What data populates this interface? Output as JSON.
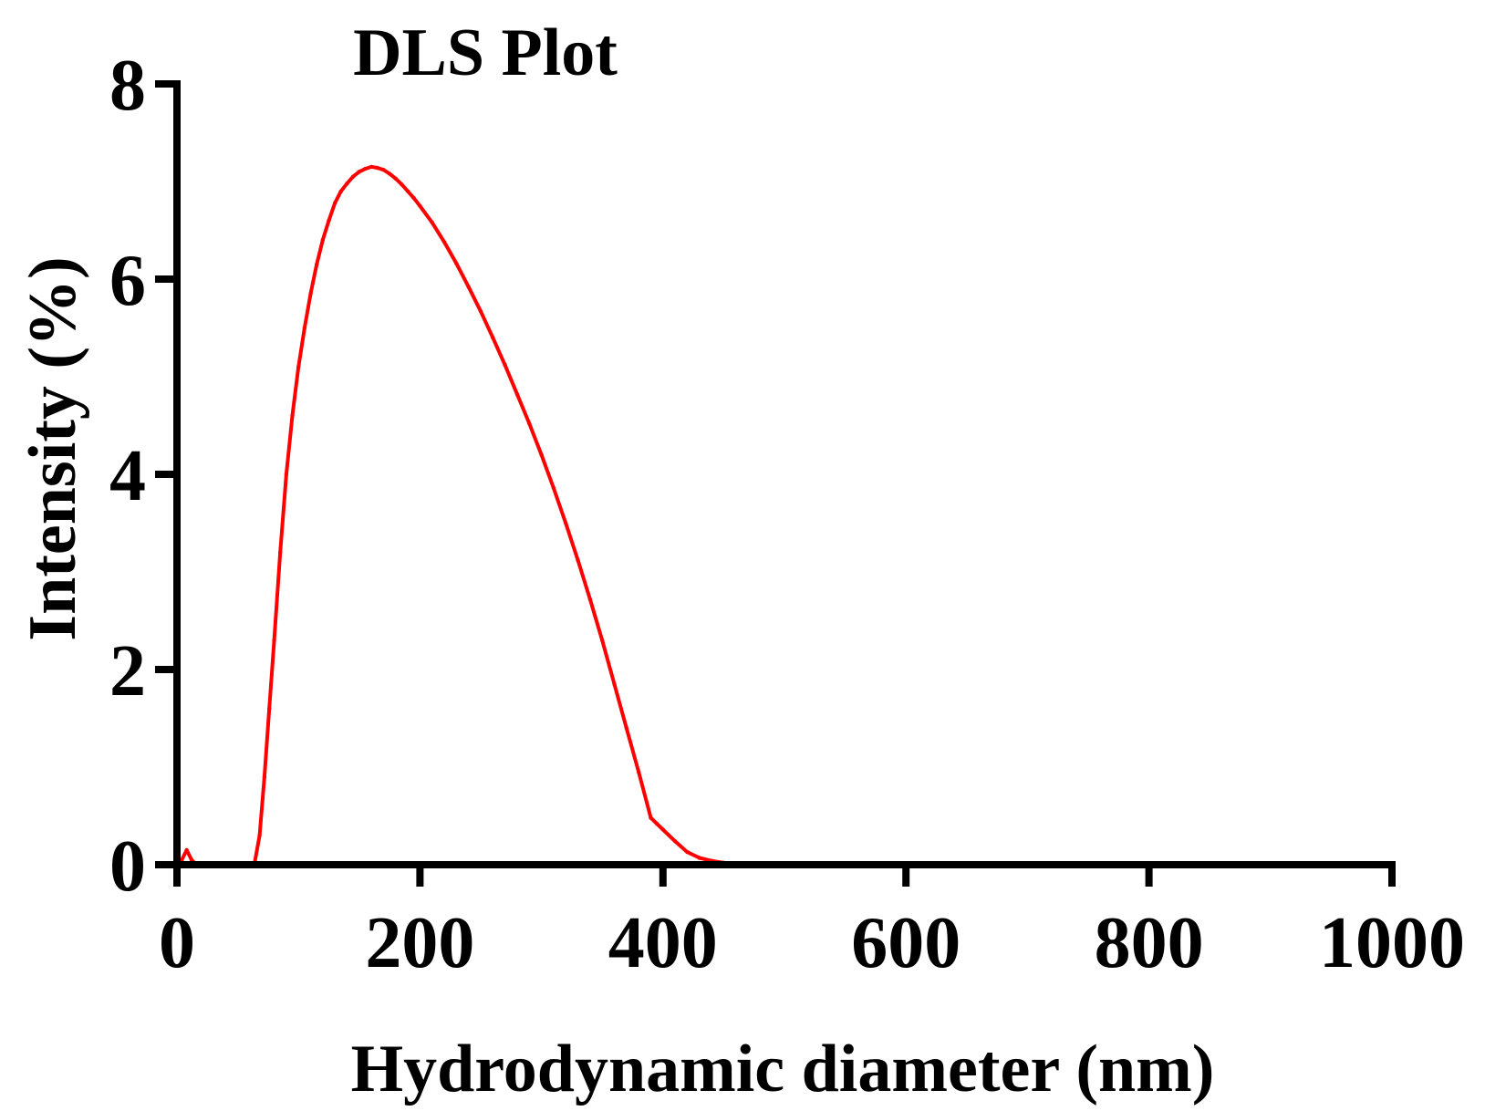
{
  "chart_data": {
    "type": "line",
    "title": "DLS Plot",
    "xlabel": "Hydrodynamic diameter (nm)",
    "ylabel": "Intensity (%)",
    "xlim": [
      0,
      1000
    ],
    "ylim": [
      0,
      8
    ],
    "x_ticks": [
      "0",
      "200",
      "400",
      "600",
      "800",
      "1000"
    ],
    "y_ticks": [
      "0",
      "2",
      "4",
      "6",
      "8"
    ],
    "grid": false,
    "legend": "none",
    "series": [
      {
        "color": "#ff0000",
        "x": [
          0,
          4,
          8,
          12,
          16,
          20,
          30,
          40,
          50,
          60,
          64,
          68,
          72,
          76,
          80,
          85,
          90,
          95,
          100,
          105,
          110,
          115,
          120,
          125,
          130,
          135,
          140,
          145,
          150,
          155,
          160,
          165,
          170,
          175,
          180,
          185,
          190,
          195,
          200,
          210,
          220,
          230,
          240,
          250,
          260,
          270,
          280,
          290,
          300,
          310,
          320,
          330,
          340,
          350,
          360,
          370,
          380,
          390,
          395,
          400,
          410,
          420,
          430,
          440,
          450,
          460,
          480,
          500,
          600,
          700,
          800,
          900,
          1000
        ],
        "y": [
          0,
          0.05,
          0.15,
          0.05,
          0,
          0,
          0,
          0,
          0,
          0,
          0.02,
          0.3,
          0.9,
          1.6,
          2.3,
          3.2,
          4.0,
          4.6,
          5.1,
          5.5,
          5.85,
          6.15,
          6.4,
          6.6,
          6.78,
          6.9,
          6.98,
          7.05,
          7.1,
          7.13,
          7.15,
          7.14,
          7.12,
          7.08,
          7.03,
          6.97,
          6.9,
          6.83,
          6.75,
          6.58,
          6.38,
          6.16,
          5.92,
          5.67,
          5.4,
          5.12,
          4.82,
          4.52,
          4.2,
          3.86,
          3.5,
          3.12,
          2.72,
          2.3,
          1.85,
          1.4,
          0.95,
          0.48,
          0.42,
          0.36,
          0.24,
          0.13,
          0.07,
          0.04,
          0.02,
          0.01,
          0,
          0,
          0,
          0,
          0,
          0,
          0
        ]
      }
    ]
  }
}
